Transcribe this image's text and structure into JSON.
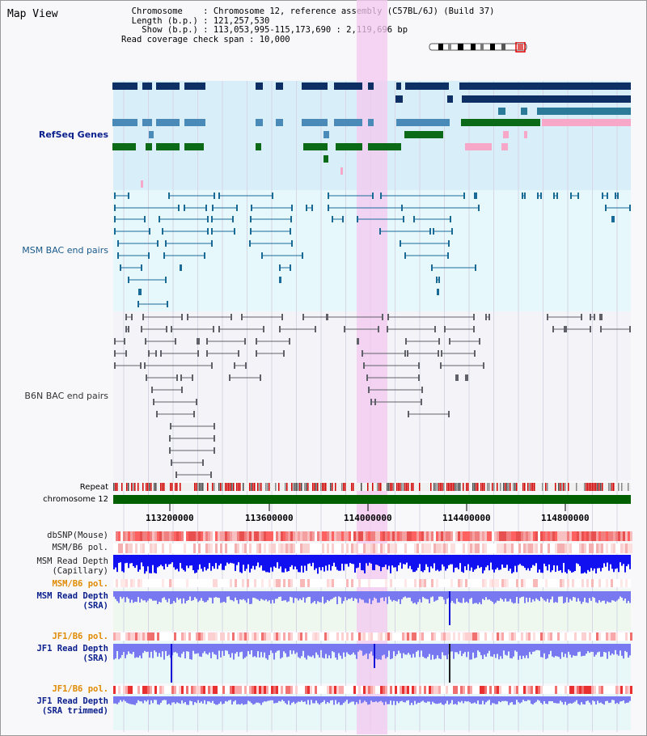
{
  "title": "Map View",
  "info": {
    "chromosome_key": "Chromosome",
    "chromosome_val": "Chromosome 12, reference assembly (C57BL/6J) (Build 37)",
    "length_key": "Length (b.p.)",
    "length_val": "121,257,530",
    "show_key": "Show (b.p.)",
    "show_val": "113,053,995-115,173,690 : 2,119,696 bp",
    "coverage_key": "Read coverage check span",
    "coverage_val": "10,000"
  },
  "tracks": {
    "refseq": "RefSeq Genes",
    "msm_bac": "MSM BAC end pairs",
    "b6n_bac": "B6N BAC end pairs",
    "repeat": "Repeat",
    "chromosome": "chromosome 12",
    "dbsnp": "dbSNP(Mouse)",
    "msm_b6_pol_1": "MSM/B6 pol.",
    "msm_depth_cap_1": "MSM Read Depth",
    "msm_depth_cap_2": "(Capillary)",
    "msm_b6_pol_2": "MSM/B6 pol.",
    "msm_depth_sra_1": "MSM Read Depth",
    "msm_depth_sra_2": "(SRA)",
    "jf1_b6_pol_1": "JF1/B6 pol.",
    "jf1_depth_sra_1": "JF1 Read Depth",
    "jf1_depth_sra_2": "(SRA)",
    "jf1_b6_pol_2": "JF1/B6 pol.",
    "jf1_depth_trim_1": "JF1 Read Depth",
    "jf1_depth_trim_2": "(SRA trimmed)"
  },
  "axis": {
    "ticks": [
      "113200000",
      "113600000",
      "114000000",
      "114400000",
      "114800000"
    ]
  },
  "colors": {
    "navy_gene": "#0d2f63",
    "steel_gene": "#4a8ab8",
    "green_gene": "#0a6a18",
    "pink_gene": "#f7a8c8",
    "highlight": "#f4c8f0",
    "refseq_bg": "#d8eef8",
    "msm_bg": "#e6f8fb",
    "read_depth_blue": "#1010f0",
    "read_depth_light": "#7878f0"
  }
}
